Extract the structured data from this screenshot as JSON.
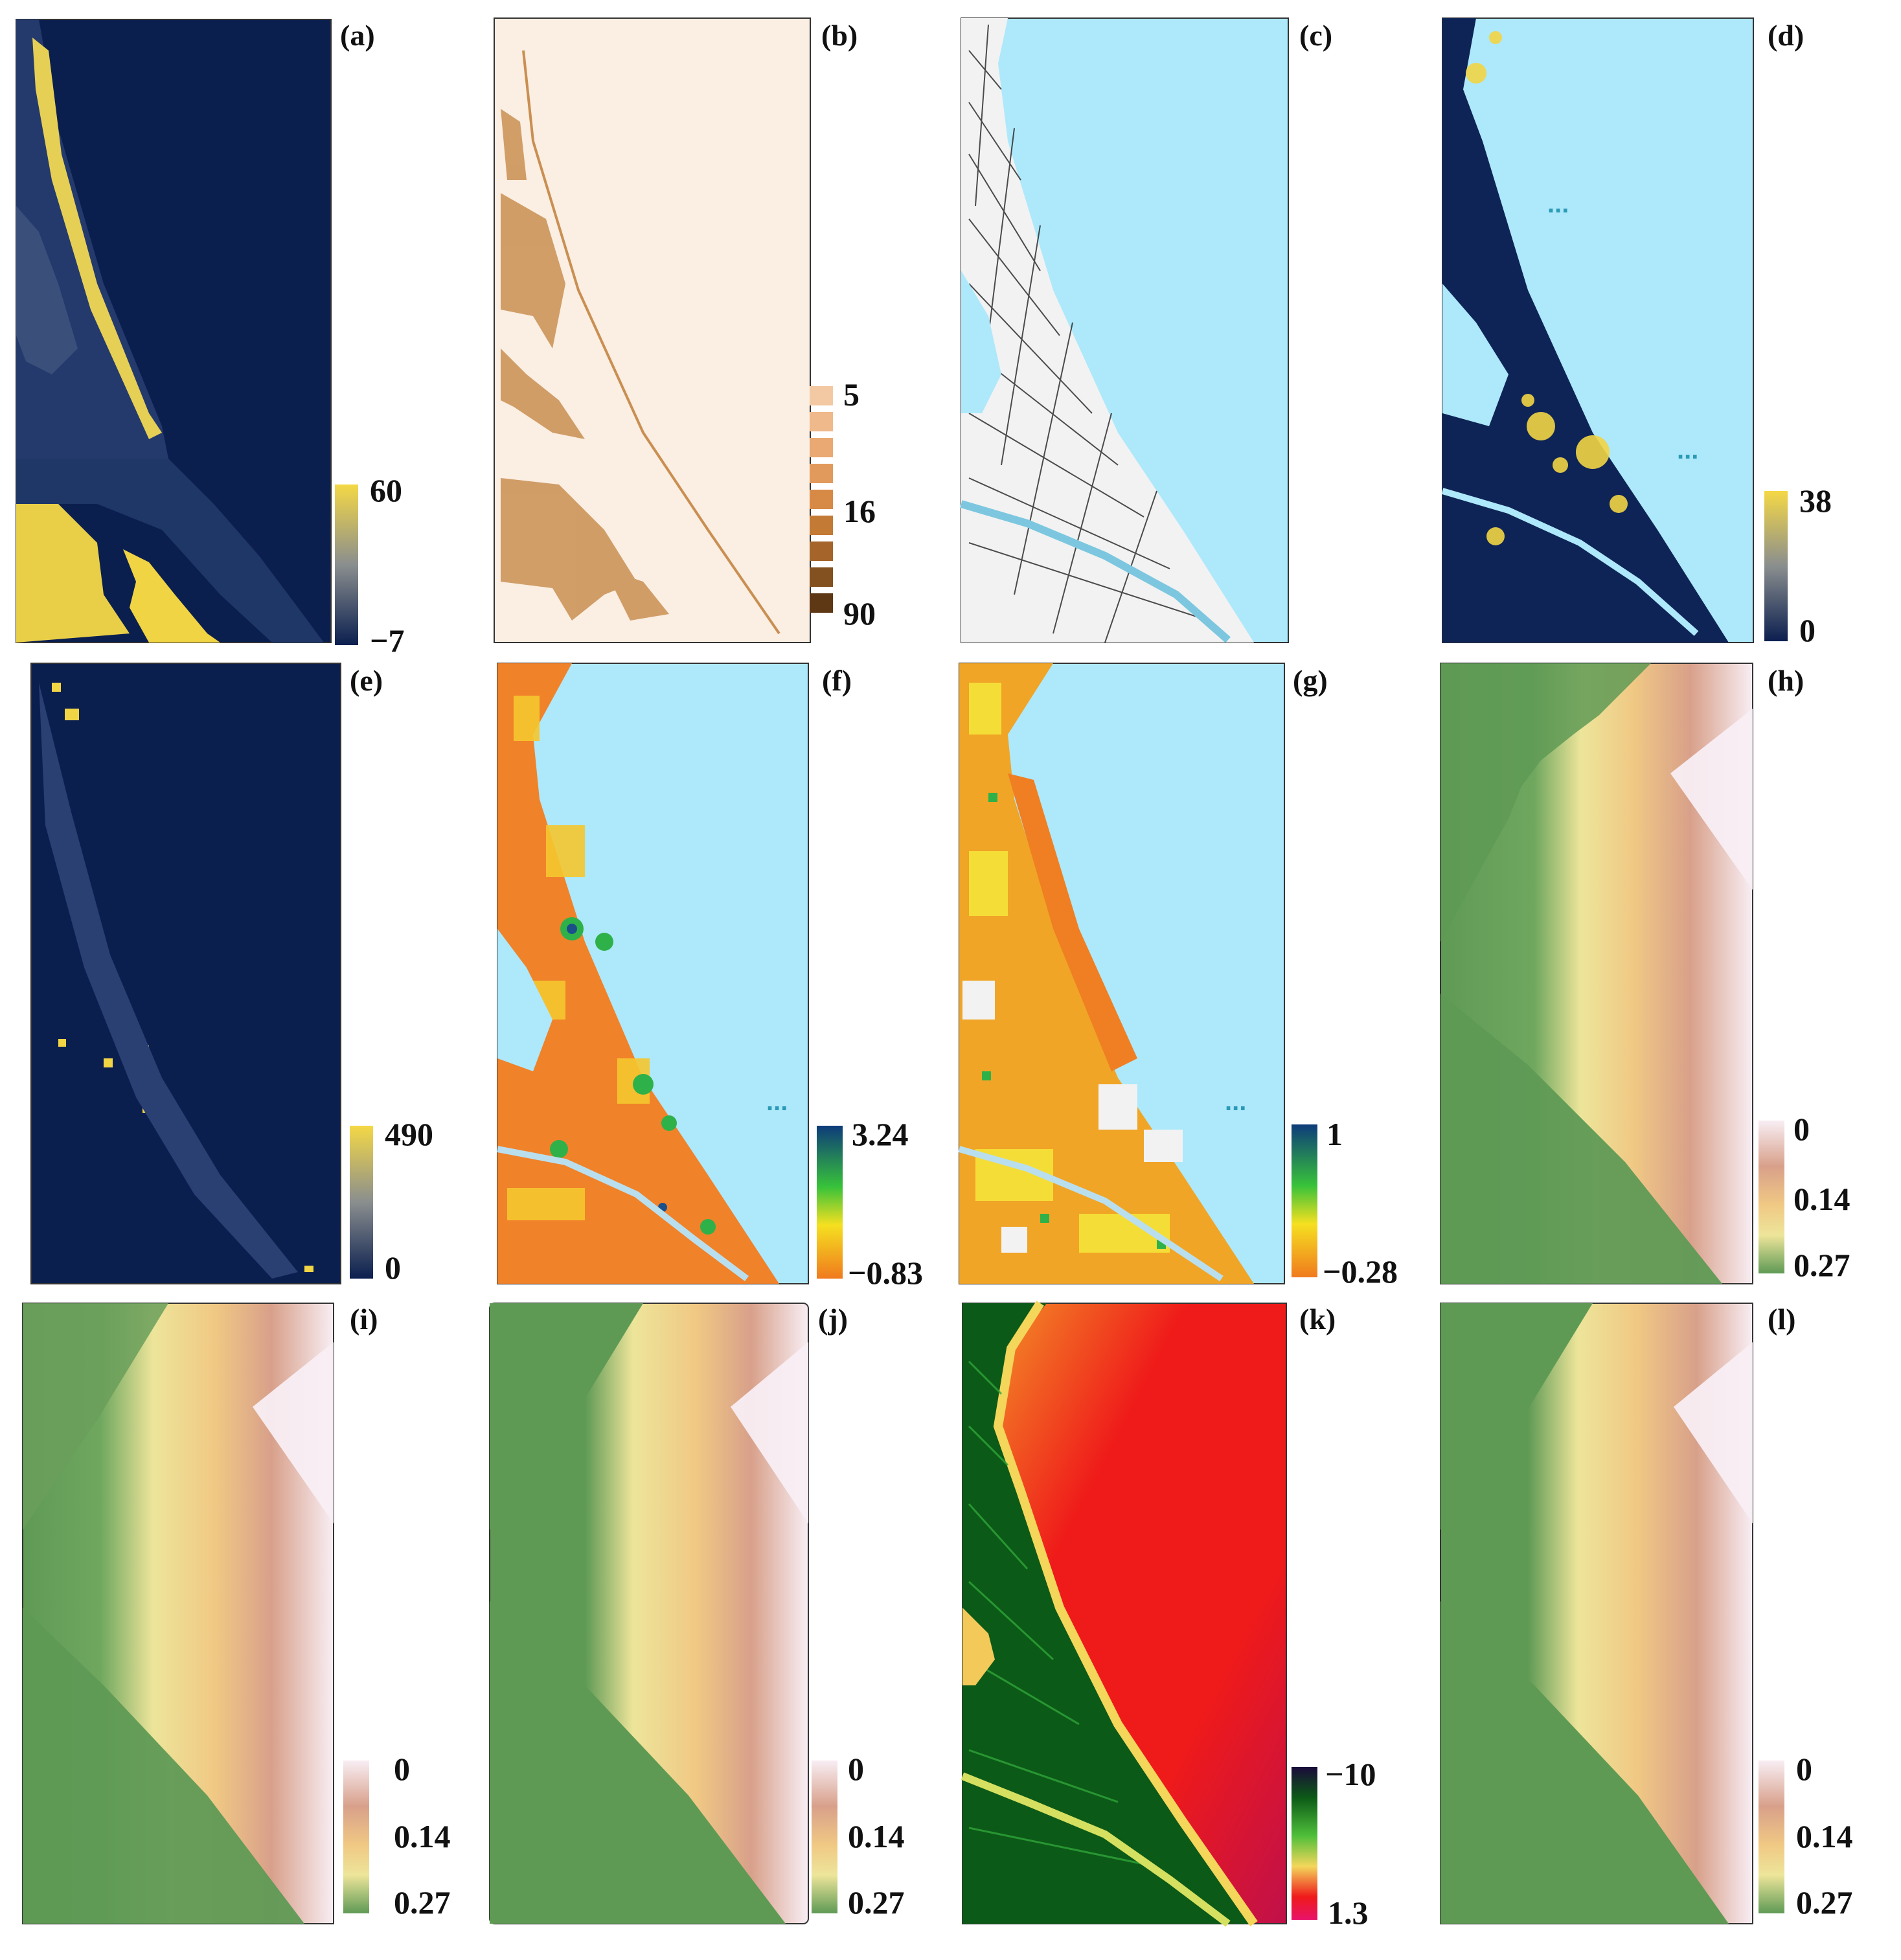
{
  "figure": {
    "panels": [
      {
        "label": "(a)",
        "legend": {
          "type": "continuous",
          "max": "60",
          "min": "−7",
          "ticks": []
        }
      },
      {
        "label": "(b)",
        "legend": {
          "type": "classes",
          "ticks": [
            "5",
            "16",
            "90"
          ]
        }
      },
      {
        "label": "(c)",
        "legend": null
      },
      {
        "label": "(d)",
        "legend": {
          "type": "continuous",
          "max": "38",
          "min": "0",
          "ticks": []
        }
      },
      {
        "label": "(e)",
        "legend": {
          "type": "continuous",
          "max": "490",
          "min": "0",
          "ticks": []
        }
      },
      {
        "label": "(f)",
        "legend": {
          "type": "continuous",
          "max": "3.24",
          "min": "−0.83",
          "ticks": []
        }
      },
      {
        "label": "(g)",
        "legend": {
          "type": "continuous",
          "max": "1",
          "min": "−0.28",
          "ticks": []
        }
      },
      {
        "label": "(h)",
        "legend": {
          "type": "continuous",
          "ticks": [
            "0",
            "0.14",
            "0.27"
          ]
        }
      },
      {
        "label": "(i)",
        "legend": {
          "type": "continuous",
          "ticks": [
            "0",
            "0.14",
            "0.27"
          ]
        }
      },
      {
        "label": "(j)",
        "legend": {
          "type": "continuous",
          "ticks": [
            "0",
            "0.14",
            "0.27"
          ]
        }
      },
      {
        "label": "(k)",
        "legend": {
          "type": "continuous",
          "max": "−10",
          "min": "1.3",
          "ticks": []
        }
      },
      {
        "label": "(l)",
        "legend": {
          "type": "continuous",
          "ticks": [
            "0",
            "0.14",
            "0.27"
          ]
        }
      }
    ],
    "colors": {
      "dark_navy": "#0b1f4f",
      "yellow": "#f2d545",
      "sea_blue": "#aee8fb",
      "cream": "#fbeee2",
      "tan": "#c98f52",
      "green_smooth": "#5f9a55",
      "pink": "#f6ecf3",
      "orange_sea_red": "#ef1a1a"
    }
  }
}
